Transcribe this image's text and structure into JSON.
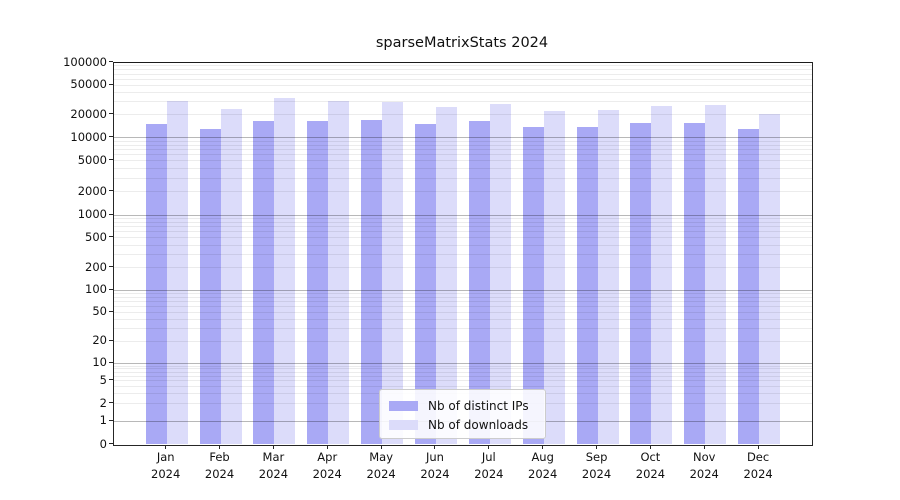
{
  "title": "sparseMatrixStats 2024",
  "chart_data": {
    "type": "bar",
    "title": "sparseMatrixStats 2024",
    "yscale": "symlog",
    "ylim": [
      0,
      100000
    ],
    "grid": "both",
    "legend_position": "lower center",
    "year": "2024",
    "categories": [
      "Jan",
      "Feb",
      "Mar",
      "Apr",
      "May",
      "Jun",
      "Jul",
      "Aug",
      "Sep",
      "Oct",
      "Nov",
      "Dec"
    ],
    "series": [
      {
        "name": "Nb of distinct IPs",
        "color": "#a9a9f5",
        "values": [
          15000,
          12900,
          16600,
          16600,
          17000,
          15300,
          16500,
          13900,
          14000,
          15800,
          15800,
          12900
        ]
      },
      {
        "name": "Nb of downloads",
        "color": "#dcdcfa",
        "values": [
          30600,
          23800,
          33900,
          30600,
          30000,
          25700,
          27700,
          22600,
          23000,
          26500,
          27100,
          20800
        ]
      }
    ],
    "y_tick_values": [
      0,
      1,
      2,
      5,
      10,
      20,
      50,
      100,
      200,
      500,
      1000,
      2000,
      5000,
      10000,
      20000,
      50000,
      100000
    ],
    "y_tick_labels": [
      "0",
      "1",
      "2",
      "5",
      "10",
      "20",
      "50",
      "100",
      "200",
      "500",
      "1000",
      "2000",
      "5000",
      "10000",
      "20000",
      "50000",
      "100000"
    ]
  }
}
